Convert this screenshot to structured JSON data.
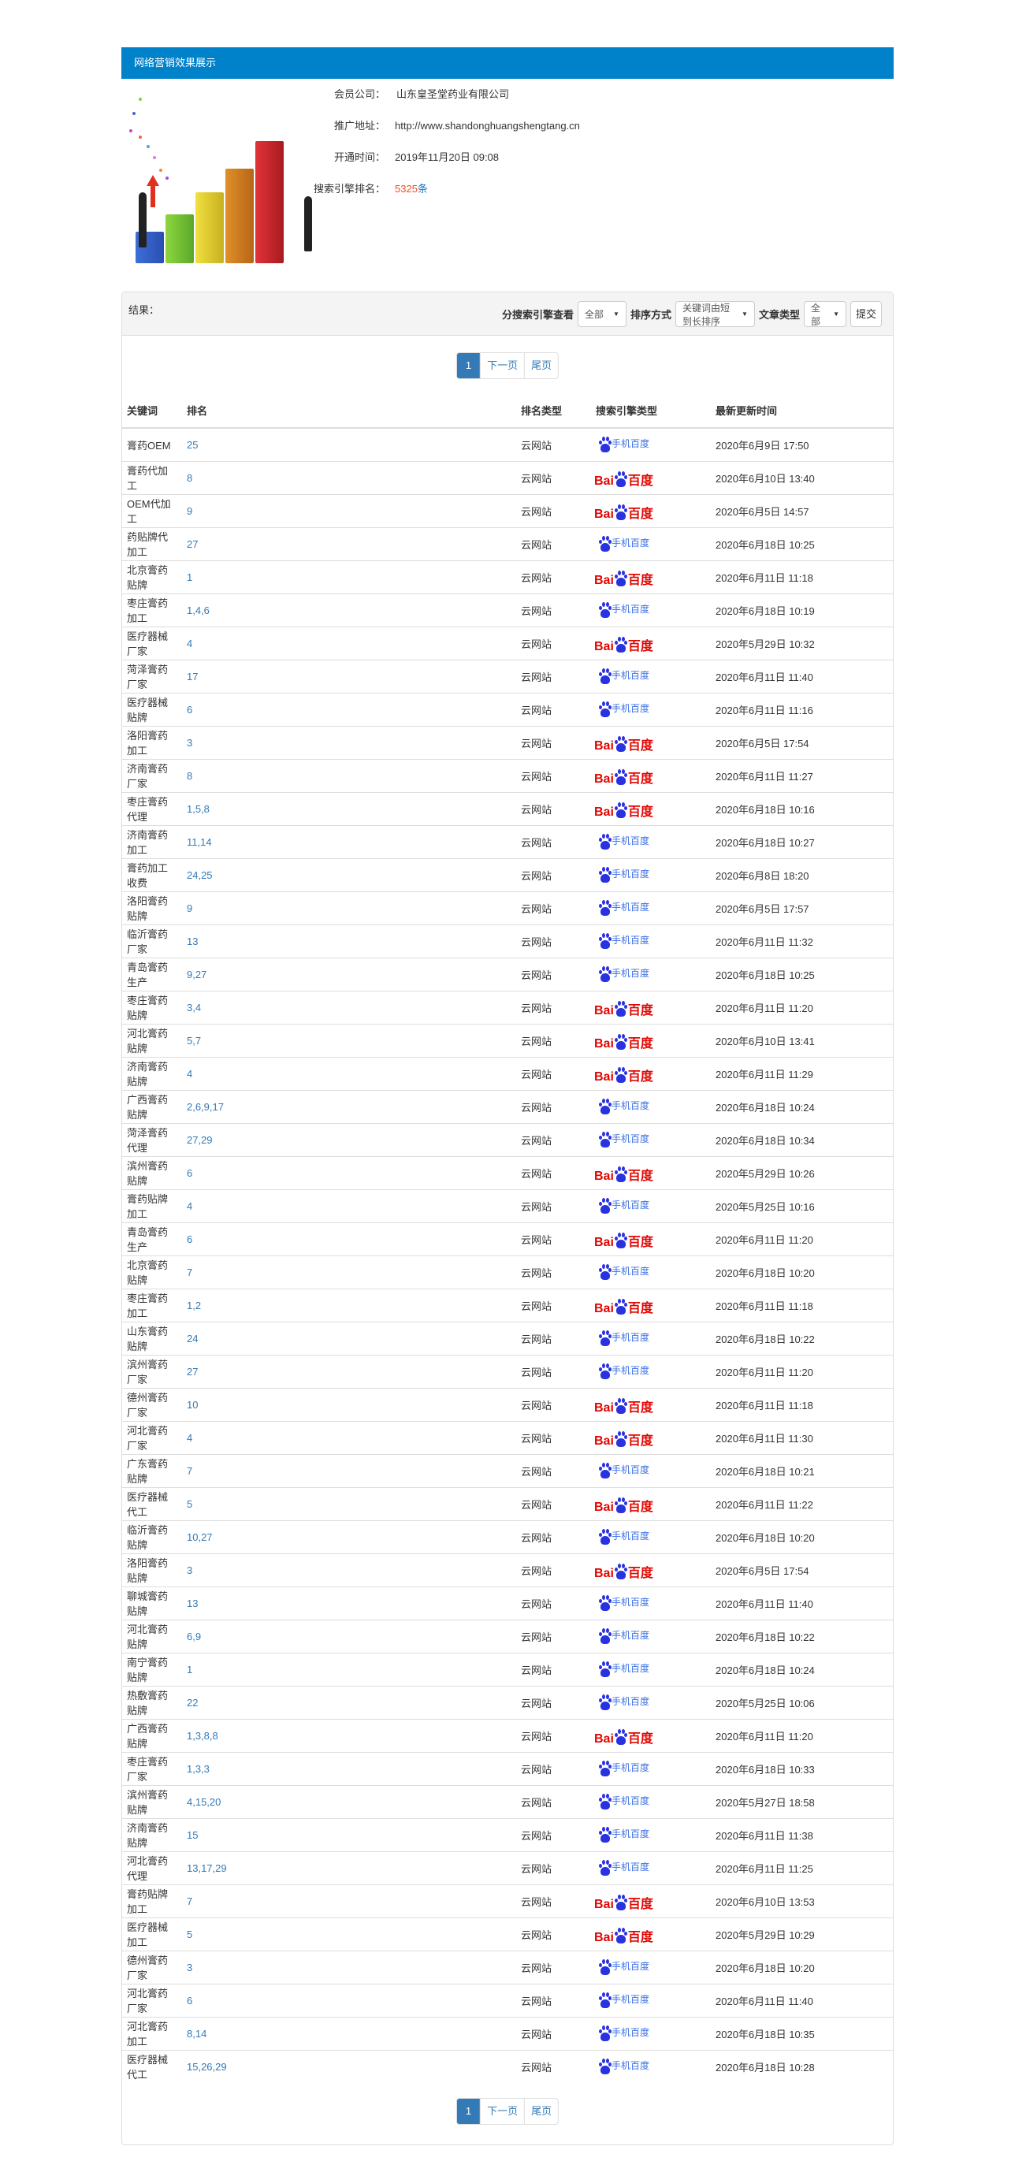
{
  "header": {
    "title": "网络营销效果展示"
  },
  "info": {
    "company_label": "会员公司：",
    "company": "山东皇圣堂药业有限公司",
    "url_label": "推广地址：",
    "url": "http://www.shandonghuangshengtang.cn",
    "open_label": "开通时间：",
    "open_time": "2019年11月20日 09:08",
    "rank_label": "搜索引擎排名：",
    "rank_count": "5325",
    "rank_unit": "条"
  },
  "toolbar": {
    "result_label": "结果：",
    "engine_label": "分搜索引擎查看",
    "engine_value": "全部",
    "sort_label": "排序方式",
    "sort_value": "关键词由短到长排序",
    "type_label": "文章类型",
    "type_value": "全部",
    "submit": "提交"
  },
  "pagination": {
    "current": "1",
    "next": "下一页",
    "last": "尾页"
  },
  "table": {
    "headers": [
      "关键词",
      "排名",
      "排名类型",
      "搜索引擎类型",
      "最新更新时间"
    ],
    "engines": {
      "pc": {
        "label": "百度",
        "prefix": "Bai",
        "color": "#e10602"
      },
      "mobile": {
        "label": "手机百度",
        "color": "#3a6fe6"
      }
    },
    "rows": [
      [
        "膏药OEM",
        "25",
        "云网站",
        "mobile",
        "2020年6月9日 17:50"
      ],
      [
        "膏药代加工",
        "8",
        "云网站",
        "pc",
        "2020年6月10日 13:40"
      ],
      [
        "OEM代加工",
        "9",
        "云网站",
        "pc",
        "2020年6月5日 14:57"
      ],
      [
        "药贴牌代加工",
        "27",
        "云网站",
        "mobile",
        "2020年6月18日 10:25"
      ],
      [
        "北京膏药贴牌",
        "1",
        "云网站",
        "pc",
        "2020年6月11日 11:18"
      ],
      [
        "枣庄膏药加工",
        "1,4,6",
        "云网站",
        "mobile",
        "2020年6月18日 10:19"
      ],
      [
        "医疗器械厂家",
        "4",
        "云网站",
        "pc",
        "2020年5月29日 10:32"
      ],
      [
        "菏泽膏药厂家",
        "17",
        "云网站",
        "mobile",
        "2020年6月11日 11:40"
      ],
      [
        "医疗器械贴牌",
        "6",
        "云网站",
        "mobile",
        "2020年6月11日 11:16"
      ],
      [
        "洛阳膏药加工",
        "3",
        "云网站",
        "pc",
        "2020年6月5日 17:54"
      ],
      [
        "济南膏药厂家",
        "8",
        "云网站",
        "pc",
        "2020年6月11日 11:27"
      ],
      [
        "枣庄膏药代理",
        "1,5,8",
        "云网站",
        "pc",
        "2020年6月18日 10:16"
      ],
      [
        "济南膏药加工",
        "11,14",
        "云网站",
        "mobile",
        "2020年6月18日 10:27"
      ],
      [
        "膏药加工收费",
        "24,25",
        "云网站",
        "mobile",
        "2020年6月8日 18:20"
      ],
      [
        "洛阳膏药贴牌",
        "9",
        "云网站",
        "mobile",
        "2020年6月5日 17:57"
      ],
      [
        "临沂膏药厂家",
        "13",
        "云网站",
        "mobile",
        "2020年6月11日 11:32"
      ],
      [
        "青岛膏药生产",
        "9,27",
        "云网站",
        "mobile",
        "2020年6月18日 10:25"
      ],
      [
        "枣庄膏药贴牌",
        "3,4",
        "云网站",
        "pc",
        "2020年6月11日 11:20"
      ],
      [
        "河北膏药贴牌",
        "5,7",
        "云网站",
        "pc",
        "2020年6月10日 13:41"
      ],
      [
        "济南膏药贴牌",
        "4",
        "云网站",
        "pc",
        "2020年6月11日 11:29"
      ],
      [
        "广西膏药贴牌",
        "2,6,9,17",
        "云网站",
        "mobile",
        "2020年6月18日 10:24"
      ],
      [
        "菏泽膏药代理",
        "27,29",
        "云网站",
        "mobile",
        "2020年6月18日 10:34"
      ],
      [
        "滨州膏药贴牌",
        "6",
        "云网站",
        "pc",
        "2020年5月29日 10:26"
      ],
      [
        "膏药贴牌加工",
        "4",
        "云网站",
        "mobile",
        "2020年5月25日 10:16"
      ],
      [
        "青岛膏药生产",
        "6",
        "云网站",
        "pc",
        "2020年6月11日 11:20"
      ],
      [
        "北京膏药贴牌",
        "7",
        "云网站",
        "mobile",
        "2020年6月18日 10:20"
      ],
      [
        "枣庄膏药加工",
        "1,2",
        "云网站",
        "pc",
        "2020年6月11日 11:18"
      ],
      [
        "山东膏药贴牌",
        "24",
        "云网站",
        "mobile",
        "2020年6月18日 10:22"
      ],
      [
        "滨州膏药厂家",
        "27",
        "云网站",
        "mobile",
        "2020年6月11日 11:20"
      ],
      [
        "德州膏药厂家",
        "10",
        "云网站",
        "pc",
        "2020年6月11日 11:18"
      ],
      [
        "河北膏药厂家",
        "4",
        "云网站",
        "pc",
        "2020年6月11日 11:30"
      ],
      [
        "广东膏药贴牌",
        "7",
        "云网站",
        "mobile",
        "2020年6月18日 10:21"
      ],
      [
        "医疗器械代工",
        "5",
        "云网站",
        "pc",
        "2020年6月11日 11:22"
      ],
      [
        "临沂膏药贴牌",
        "10,27",
        "云网站",
        "mobile",
        "2020年6月18日 10:20"
      ],
      [
        "洛阳膏药贴牌",
        "3",
        "云网站",
        "pc",
        "2020年6月5日 17:54"
      ],
      [
        "聊城膏药贴牌",
        "13",
        "云网站",
        "mobile",
        "2020年6月11日 11:40"
      ],
      [
        "河北膏药贴牌",
        "6,9",
        "云网站",
        "mobile",
        "2020年6月18日 10:22"
      ],
      [
        "南宁膏药贴牌",
        "1",
        "云网站",
        "mobile",
        "2020年6月18日 10:24"
      ],
      [
        "热敷膏药贴牌",
        "22",
        "云网站",
        "mobile",
        "2020年5月25日 10:06"
      ],
      [
        "广西膏药贴牌",
        "1,3,8,8",
        "云网站",
        "pc",
        "2020年6月11日 11:20"
      ],
      [
        "枣庄膏药厂家",
        "1,3,3",
        "云网站",
        "mobile",
        "2020年6月18日 10:33"
      ],
      [
        "滨州膏药贴牌",
        "4,15,20",
        "云网站",
        "mobile",
        "2020年5月27日 18:58"
      ],
      [
        "济南膏药贴牌",
        "15",
        "云网站",
        "mobile",
        "2020年6月11日 11:38"
      ],
      [
        "河北膏药代理",
        "13,17,29",
        "云网站",
        "mobile",
        "2020年6月11日 11:25"
      ],
      [
        "膏药贴牌加工",
        "7",
        "云网站",
        "pc",
        "2020年6月10日 13:53"
      ],
      [
        "医疗器械加工",
        "5",
        "云网站",
        "pc",
        "2020年5月29日 10:29"
      ],
      [
        "德州膏药厂家",
        "3",
        "云网站",
        "mobile",
        "2020年6月18日 10:20"
      ],
      [
        "河北膏药厂家",
        "6",
        "云网站",
        "mobile",
        "2020年6月11日 11:40"
      ],
      [
        "河北膏药加工",
        "8,14",
        "云网站",
        "mobile",
        "2020年6月18日 10:35"
      ],
      [
        "医疗器械代工",
        "15,26,29",
        "云网站",
        "mobile",
        "2020年6月18日 10:28"
      ]
    ]
  }
}
